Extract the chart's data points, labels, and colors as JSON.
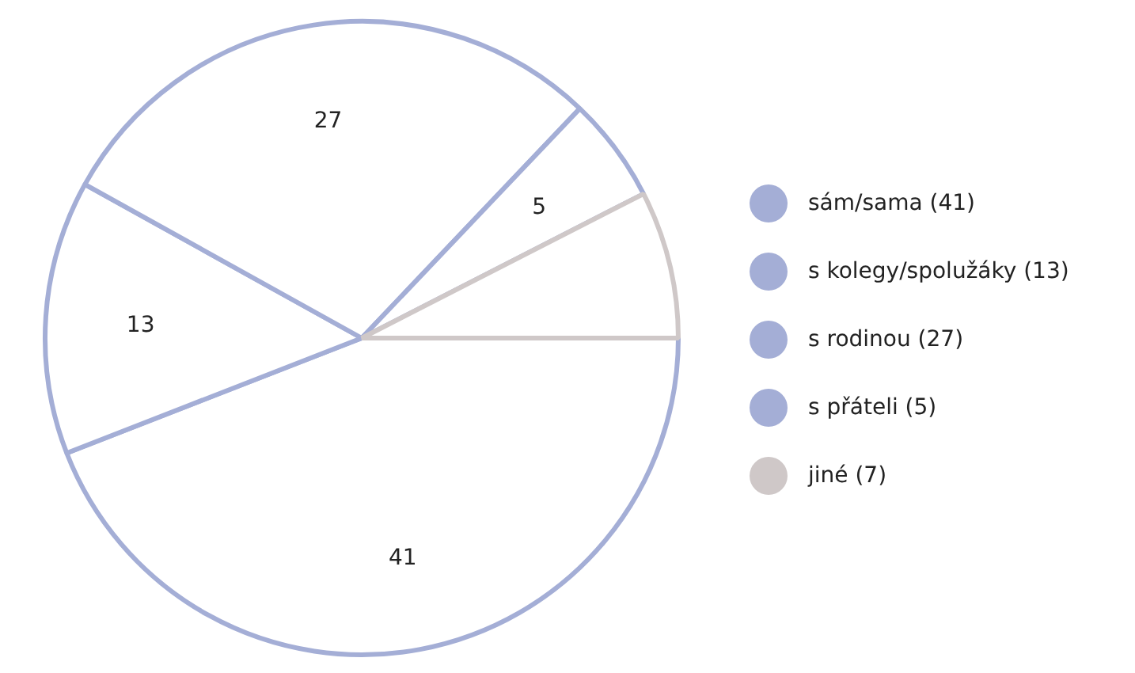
{
  "chart_data": {
    "type": "pie",
    "categories": [
      "sám/sama (41)",
      "s kolegy/spolužáky (13)",
      "s rodinou (27)",
      "s přáteli (5)",
      "jiné (7)"
    ],
    "values": [
      41,
      13,
      27,
      5,
      7
    ],
    "colors": [
      "#a4aed6",
      "#a4aed6",
      "#a4aed6",
      "#a4aed6",
      "#cfc8c8"
    ],
    "value_labels": [
      "41",
      "13",
      "27",
      "5",
      null
    ],
    "legend": "right"
  }
}
